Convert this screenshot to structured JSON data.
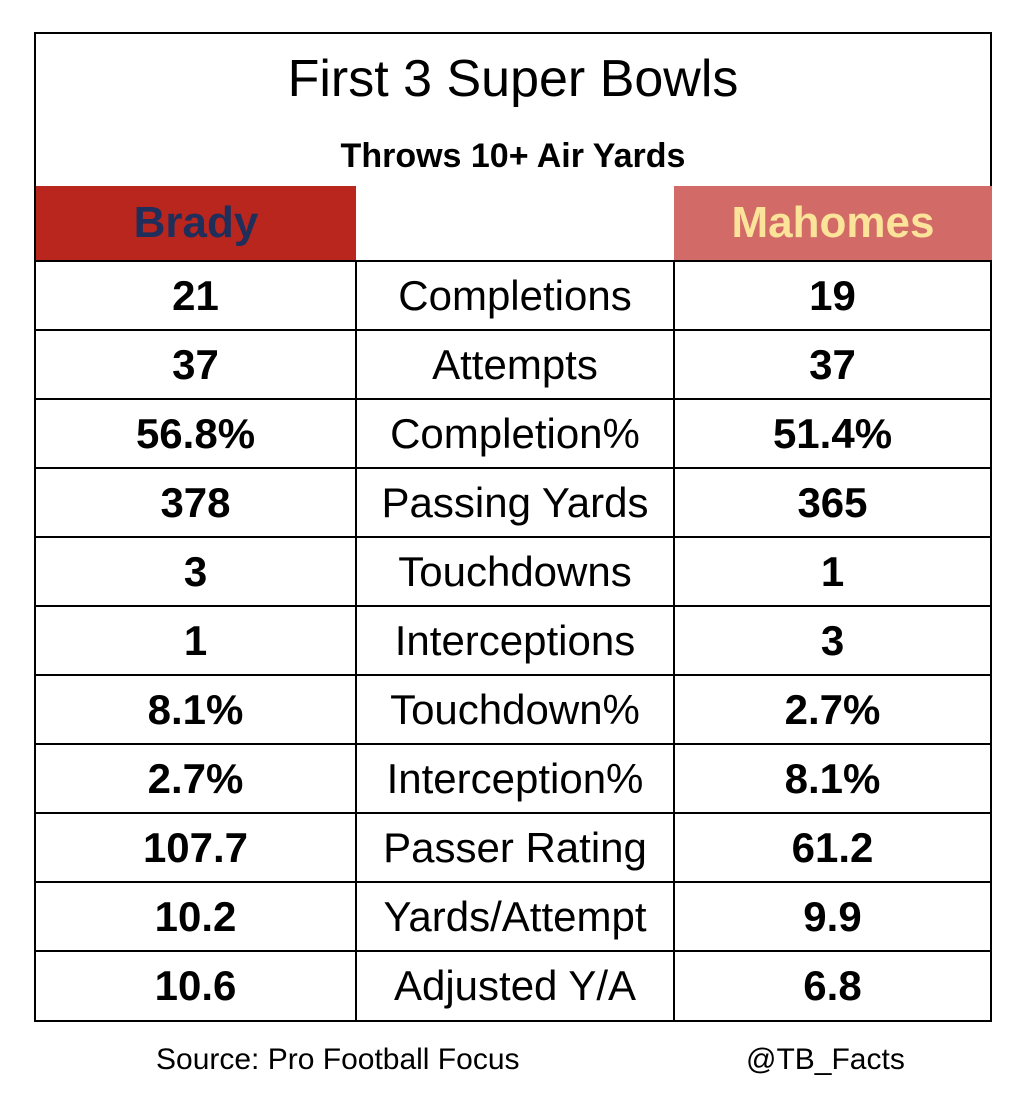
{
  "title": "First 3 Super Bowls",
  "subtitle": "Throws 10+ Air Yards",
  "players": {
    "left": {
      "name": "Brady",
      "bg_color": "#b8261d",
      "text_color": "#1f2e5b"
    },
    "right": {
      "name": "Mahomes",
      "bg_color": "#d26a68",
      "text_color": "#fbe39a"
    }
  },
  "chart_data": {
    "type": "table",
    "title": "First 3 Super Bowls",
    "subtitle": "Throws 10+ Air Yards",
    "columns": [
      "Brady",
      "",
      "Mahomes"
    ],
    "rows": [
      {
        "stat": "Completions",
        "brady": "21",
        "mahomes": "19"
      },
      {
        "stat": "Attempts",
        "brady": "37",
        "mahomes": "37"
      },
      {
        "stat": "Completion%",
        "brady": "56.8%",
        "mahomes": "51.4%"
      },
      {
        "stat": "Passing Yards",
        "brady": "378",
        "mahomes": "365"
      },
      {
        "stat": "Touchdowns",
        "brady": "3",
        "mahomes": "1"
      },
      {
        "stat": "Interceptions",
        "brady": "1",
        "mahomes": "3"
      },
      {
        "stat": "Touchdown%",
        "brady": "8.1%",
        "mahomes": "2.7%"
      },
      {
        "stat": "Interception%",
        "brady": "2.7%",
        "mahomes": "8.1%"
      },
      {
        "stat": "Passer Rating",
        "brady": "107.7",
        "mahomes": "61.2"
      },
      {
        "stat": "Yards/Attempt",
        "brady": "10.2",
        "mahomes": "9.9"
      },
      {
        "stat": "Adjusted Y/A",
        "brady": "10.6",
        "mahomes": "6.8"
      }
    ]
  },
  "footer": {
    "source": "Source: Pro Football Focus",
    "handle": "@TB_Facts"
  }
}
